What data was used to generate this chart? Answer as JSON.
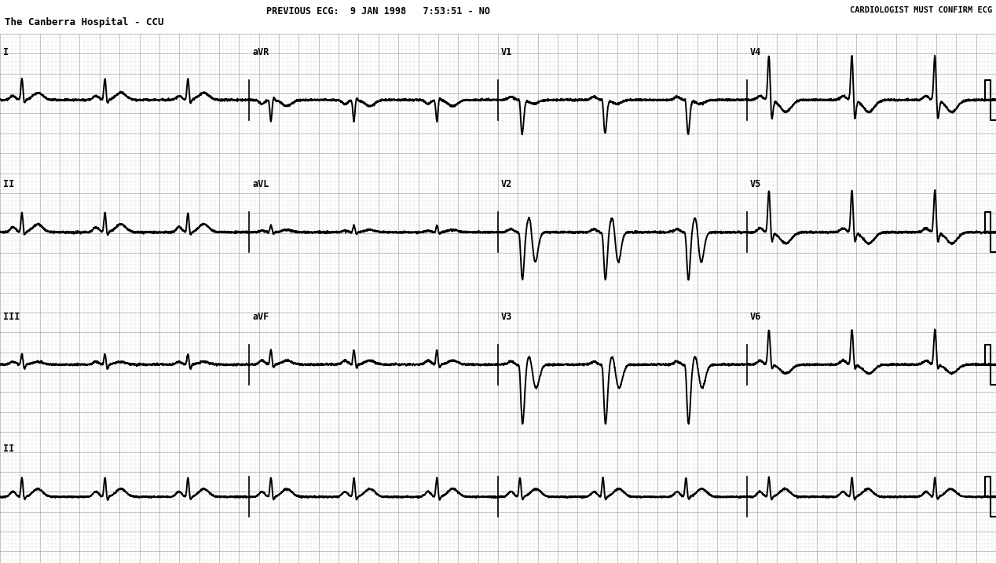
{
  "header_line1": "PREVIOUS ECG:  9 JAN 1998   7:53:51 - NO",
  "header_line2": "The Canberra Hospital - CCU",
  "top_right": "CARDIOLOGIST MUST CONFIRM ECG",
  "bg_color": "#ffffff",
  "grid_dot_color": "#aaaaaa",
  "grid_major_color": "#999999",
  "ecg_color": "#000000",
  "fig_width": 12.68,
  "fig_height": 7.17,
  "dpi": 100,
  "heart_rate": 72,
  "linewidth": 1.4,
  "lead_layout": [
    [
      [
        "I",
        "i"
      ],
      [
        "aVR",
        "avr"
      ],
      [
        "V1",
        "v1"
      ],
      [
        "V4",
        "v4"
      ]
    ],
    [
      [
        "II",
        "ii"
      ],
      [
        "aVL",
        "avl"
      ],
      [
        "V2",
        "v2"
      ],
      [
        "V5",
        "v5"
      ]
    ],
    [
      [
        "III",
        "iii"
      ],
      [
        "aVF",
        "avf"
      ],
      [
        "V3",
        "v3"
      ],
      [
        "V6",
        "v6"
      ]
    ]
  ],
  "rhythm_lead": [
    "II",
    "ii"
  ]
}
